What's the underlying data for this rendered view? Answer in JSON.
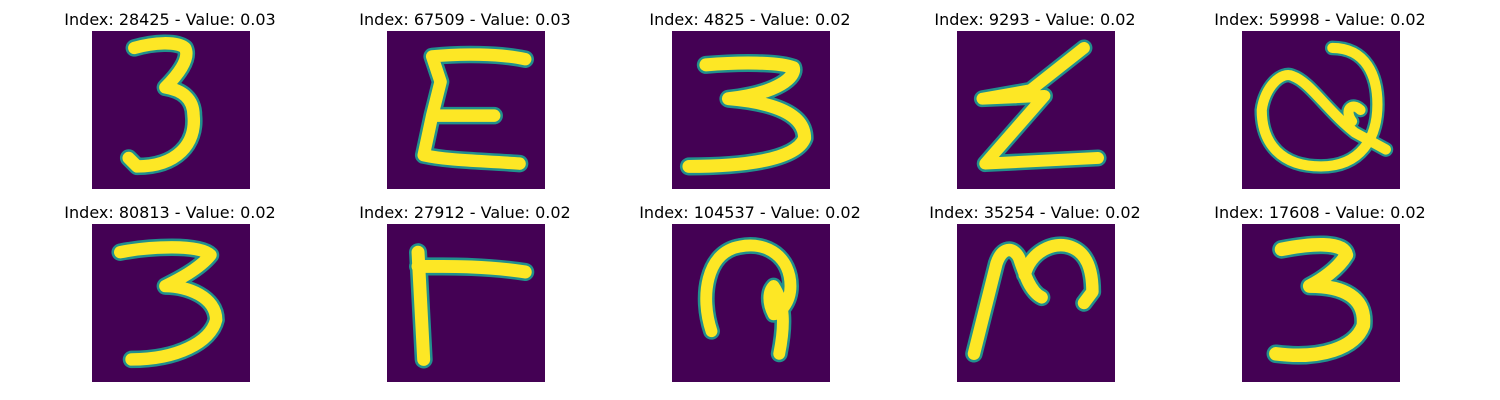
{
  "panels": [
    {
      "title": "Index: 28425 - Value: 0.03",
      "glyph": "3"
    },
    {
      "title": "Index: 67509 - Value: 0.03",
      "glyph": "E"
    },
    {
      "title": "Index: 4825 - Value: 0.02",
      "glyph": "3-wide"
    },
    {
      "title": "Index: 9293 - Value: 0.02",
      "glyph": "Z"
    },
    {
      "title": "Index: 59998 - Value: 0.02",
      "glyph": "Q"
    },
    {
      "title": "Index: 80813 - Value: 0.02",
      "glyph": "3-b"
    },
    {
      "title": "Index: 27912 - Value: 0.02",
      "glyph": "L"
    },
    {
      "title": "Index: 104537 - Value: 0.02",
      "glyph": "loop"
    },
    {
      "title": "Index: 35254 - Value: 0.02",
      "glyph": "N"
    },
    {
      "title": "Index: 17608 - Value: 0.02",
      "glyph": "3-c"
    }
  ],
  "colors": {
    "background": "#440154",
    "stroke": "#fde725",
    "edge": "#21908d"
  }
}
